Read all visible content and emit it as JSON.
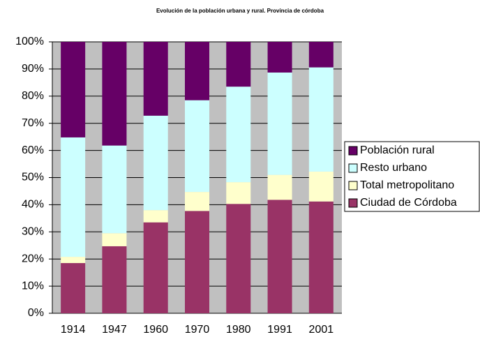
{
  "chart_data": {
    "type": "stacked_bar_100",
    "title": "Evolución de la población urbana y rural. Provincia de córdoba",
    "categories": [
      "1914",
      "1947",
      "1960",
      "1970",
      "1980",
      "1991",
      "2001"
    ],
    "series": [
      {
        "name": "Ciudad de Córdoba",
        "color": "#993366",
        "values": [
          18.5,
          24.7,
          33.5,
          37.7,
          40.3,
          41.8,
          41.2
        ]
      },
      {
        "name": "Total metropolitano",
        "color": "#ffffcc",
        "values": [
          2.3,
          4.8,
          4.5,
          7,
          8,
          9.2,
          11
        ]
      },
      {
        "name": "Resto urbano",
        "color": "#ccffff",
        "values": [
          44,
          32.3,
          34.8,
          33.8,
          35.2,
          37.7,
          38.4
        ]
      },
      {
        "name": "Población rural",
        "color": "#660066",
        "values": [
          35.2,
          38.2,
          27.2,
          21.5,
          16.5,
          11.3,
          9.4
        ]
      }
    ],
    "ylim": [
      0,
      100
    ],
    "yticks": [
      {
        "value": 0,
        "label": "0%"
      },
      {
        "value": 10,
        "label": "10%"
      },
      {
        "value": 20,
        "label": "20%"
      },
      {
        "value": 30,
        "label": "30%"
      },
      {
        "value": 40,
        "label": "40%"
      },
      {
        "value": 50,
        "label": "50%"
      },
      {
        "value": 60,
        "label": "60%"
      },
      {
        "value": 70,
        "label": "70%"
      },
      {
        "value": 80,
        "label": "80%"
      },
      {
        "value": 90,
        "label": "90%"
      },
      {
        "value": 100,
        "label": "100%"
      }
    ],
    "grid": true,
    "legend": "right",
    "plot_background": "#c0c0c0"
  }
}
